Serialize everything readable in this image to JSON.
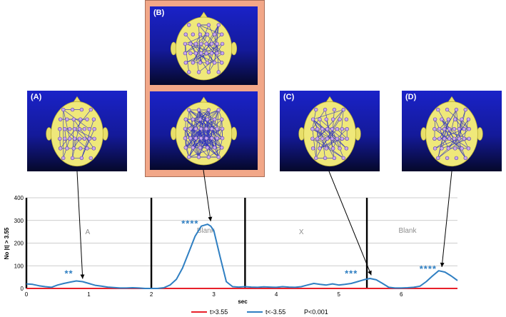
{
  "panels": [
    {
      "id": "A",
      "label": "(A)"
    },
    {
      "id": "B",
      "label": "(B)"
    },
    {
      "id": "C",
      "label": "(C)"
    },
    {
      "id": "D",
      "label": "(D)"
    }
  ],
  "chart_data": {
    "type": "line",
    "xlabel": "sec",
    "ylabel": "No |t| > 3.55",
    "xlim": [
      0,
      6.9
    ],
    "ylim": [
      0,
      400
    ],
    "xticks": [
      0,
      1,
      2,
      3,
      4,
      5,
      6
    ],
    "yticks": [
      0,
      100,
      200,
      300,
      400
    ],
    "grid": "horizontal",
    "legend_position": "bottom",
    "legend_note": "P<0.001",
    "epoch_markers": [
      0,
      2,
      3.5,
      5.45
    ],
    "epoch_labels": [
      {
        "text": "A",
        "x": 0.98,
        "y": 240
      },
      {
        "text": "Blank",
        "x": 2.87,
        "y": 245
      },
      {
        "text": "X",
        "x": 4.4,
        "y": 240
      },
      {
        "text": "Blank",
        "x": 6.1,
        "y": 245
      }
    ],
    "significance": [
      {
        "text": "**",
        "x": 0.68,
        "y": 52
      },
      {
        "text": "****",
        "x": 2.62,
        "y": 272
      },
      {
        "text": "***",
        "x": 5.2,
        "y": 52
      },
      {
        "text": "****",
        "x": 6.43,
        "y": 72
      }
    ],
    "series": [
      {
        "name": "t>3.55",
        "color": "#e8202a",
        "x": [
          0,
          6.9
        ],
        "y": [
          0,
          0
        ]
      },
      {
        "name": "t<-3.55",
        "color": "#2f7fc2",
        "x": [
          0,
          0.1,
          0.2,
          0.3,
          0.4,
          0.5,
          0.6,
          0.7,
          0.8,
          0.9,
          1.0,
          1.1,
          1.2,
          1.3,
          1.4,
          1.5,
          1.6,
          1.7,
          1.8,
          1.9,
          2.0,
          2.1,
          2.2,
          2.3,
          2.4,
          2.5,
          2.6,
          2.7,
          2.8,
          2.9,
          2.95,
          3.0,
          3.1,
          3.2,
          3.3,
          3.4,
          3.5,
          3.6,
          3.7,
          3.8,
          3.9,
          4.0,
          4.1,
          4.2,
          4.3,
          4.4,
          4.5,
          4.6,
          4.7,
          4.8,
          4.9,
          5.0,
          5.1,
          5.2,
          5.3,
          5.4,
          5.5,
          5.6,
          5.7,
          5.8,
          5.9,
          6.0,
          6.1,
          6.2,
          6.3,
          6.4,
          6.5,
          6.6,
          6.7,
          6.8,
          6.9
        ],
        "y": [
          20,
          18,
          12,
          8,
          5,
          15,
          22,
          28,
          33,
          30,
          22,
          14,
          10,
          6,
          4,
          2,
          2,
          3,
          2,
          0,
          0,
          0,
          3,
          15,
          40,
          90,
          160,
          230,
          275,
          283,
          275,
          255,
          140,
          30,
          8,
          6,
          8,
          6,
          5,
          7,
          6,
          5,
          8,
          6,
          5,
          8,
          15,
          22,
          18,
          15,
          20,
          15,
          18,
          22,
          30,
          38,
          44,
          38,
          22,
          5,
          2,
          2,
          3,
          5,
          10,
          30,
          55,
          78,
          72,
          55,
          35
        ]
      }
    ]
  }
}
